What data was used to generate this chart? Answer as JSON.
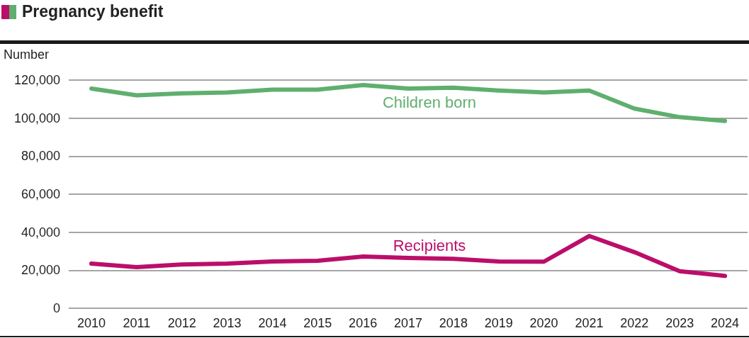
{
  "chart_data": {
    "type": "line",
    "title": "Pregnancy benefit",
    "ylabel": "Number",
    "categories": [
      "2010",
      "2011",
      "2012",
      "2013",
      "2014",
      "2015",
      "2016",
      "2017",
      "2018",
      "2019",
      "2020",
      "2021",
      "2022",
      "2023",
      "2024"
    ],
    "series": [
      {
        "name": "Children born",
        "color": "#5faf6e",
        "values": [
          115500,
          112000,
          113000,
          113500,
          115000,
          115000,
          117400,
          115500,
          116000,
          114500,
          113500,
          114500,
          105000,
          100500,
          98500
        ]
      },
      {
        "name": "Recipients",
        "color": "#bb0e6a",
        "values": [
          23500,
          21600,
          23000,
          23500,
          24600,
          25000,
          27200,
          26500,
          26000,
          24600,
          24500,
          38000,
          29500,
          19500,
          17000
        ]
      }
    ],
    "ylim": [
      0,
      120000
    ],
    "yticks": [
      0,
      {
        "value": 20000,
        "label": "20,000"
      },
      {
        "value": 40000,
        "label": "40,000"
      },
      {
        "value": 60000,
        "label": "60,000"
      },
      {
        "value": 80000,
        "label": "80,000"
      },
      {
        "value": 100000,
        "label": "100,000"
      },
      {
        "value": 120000,
        "label": "120,000"
      }
    ],
    "grid": "y",
    "legend": false,
    "marker": "none",
    "line_style": "solid"
  }
}
